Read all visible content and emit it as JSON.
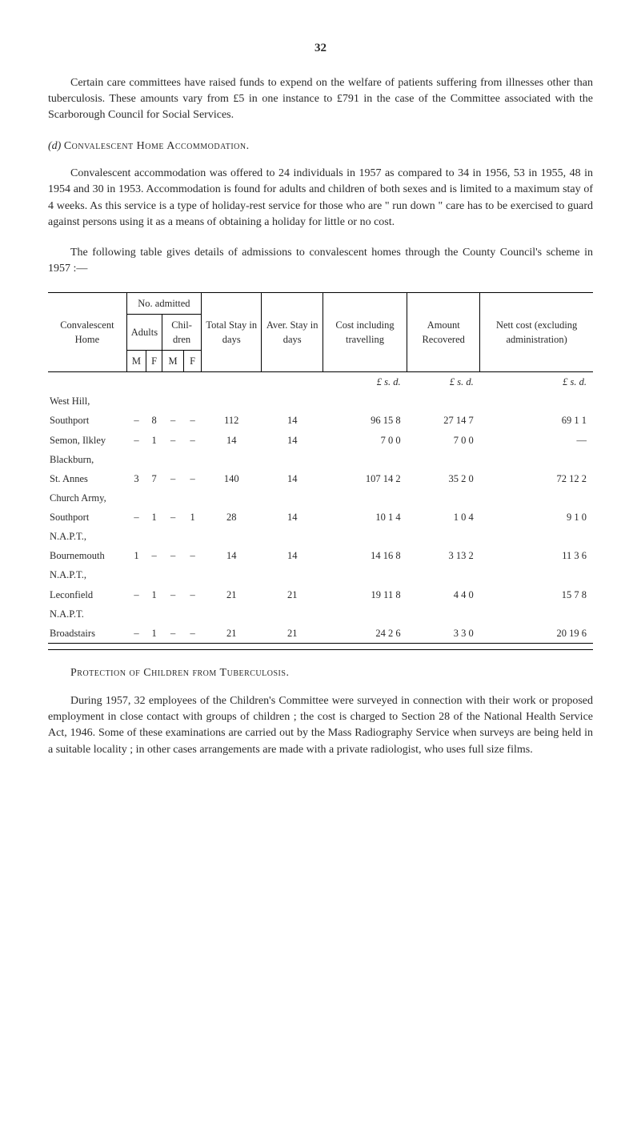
{
  "page_number": "32",
  "para1": "Certain care committees have raised funds to expend on the welfare of patients suffering from illnesses other than tuberculosis. These amounts vary from £5 in one instance to £791 in the case of the Committee associated with the Scarborough Council for Social Services.",
  "section_d": {
    "label": "(d)",
    "title": "Convalescent Home Accommodation."
  },
  "para2": "Convalescent accommodation was offered to 24 individuals in 1957 as compared to 34 in 1956, 53 in 1955, 48 in 1954 and 30 in 1953. Accom­modation is found for adults and children of both sexes and is limited to a maximum stay of 4 weeks. As this service is a type of holiday-rest service for those who are \" run down \" care has to be exercised to guard against persons using it as a means of obtaining a holiday for little or no cost.",
  "para3": "The following table gives details of admissions to convalescent homes through the County Council's scheme in 1957 :—",
  "table": {
    "headers": {
      "conv_home": "Convalescent Home",
      "no_admitted": "No. admitted",
      "adults": "Adults",
      "children": "Chil­dren",
      "m": "M",
      "f": "F",
      "total_stay": "Total Stay in days",
      "aver_stay": "Aver. Stay in days",
      "cost": "Cost including travelling",
      "amount": "Amount Recovered",
      "nett": "Nett cost (excluding admini­stration)",
      "lsd": "£    s.   d."
    },
    "rows": [
      {
        "home_top": "West Hill,",
        "home_sub": "Southport",
        "am": "–",
        "af": "8",
        "cm": "–",
        "cf": "–",
        "total": "112",
        "aver": "14",
        "cost": "96  15    8",
        "amount": "27  14    7",
        "nett": "69    1    1"
      },
      {
        "home_top": "Semon, Ilkley",
        "home_sub": "",
        "am": "–",
        "af": "1",
        "cm": "–",
        "cf": "–",
        "total": "14",
        "aver": "14",
        "cost": "7    0    0",
        "amount": "7    0    0",
        "nett": "—"
      },
      {
        "home_top": "Blackburn,",
        "home_sub": "St. Annes",
        "am": "3",
        "af": "7",
        "cm": "–",
        "cf": "–",
        "total": "140",
        "aver": "14",
        "cost": "107  14    2",
        "amount": "35    2    0",
        "nett": "72  12    2"
      },
      {
        "home_top": "Church Army,",
        "home_sub": "Southport",
        "am": "–",
        "af": "1",
        "cm": "–",
        "cf": "1",
        "total": "28",
        "aver": "14",
        "cost": "10    1    4",
        "amount": "1    0    4",
        "nett": "9    1    0"
      },
      {
        "home_top": "N.A.P.T.,",
        "home_sub": "Bournemouth",
        "am": "1",
        "af": "–",
        "cm": "–",
        "cf": "–",
        "total": "14",
        "aver": "14",
        "cost": "14  16    8",
        "amount": "3  13    2",
        "nett": "11    3    6"
      },
      {
        "home_top": "N.A.P.T.,",
        "home_sub": "Leconfield",
        "am": "–",
        "af": "1",
        "cm": "–",
        "cf": "–",
        "total": "21",
        "aver": "21",
        "cost": "19  11    8",
        "amount": "4    4    0",
        "nett": "15    7    8"
      },
      {
        "home_top": "N.A.P.T.",
        "home_sub": "Broadstairs",
        "am": "–",
        "af": "1",
        "cm": "–",
        "cf": "–",
        "total": "21",
        "aver": "21",
        "cost": "24    2    6",
        "amount": "3    3    0",
        "nett": "20  19    6"
      }
    ]
  },
  "section_protection": "Protection of Children from Tuberculosis.",
  "para4": "During 1957, 32 employees of the Children's Committee were surveyed in connection with their work or proposed employment in close contact with groups of children ; the cost is charged to Section 28 of the National Health Service Act, 1946. Some of these examinations are carried out by the Mass Radiography Service when surveys are being held in a suitable locality ; in other cases arrangements are made with a private radiologist, who uses full size films."
}
